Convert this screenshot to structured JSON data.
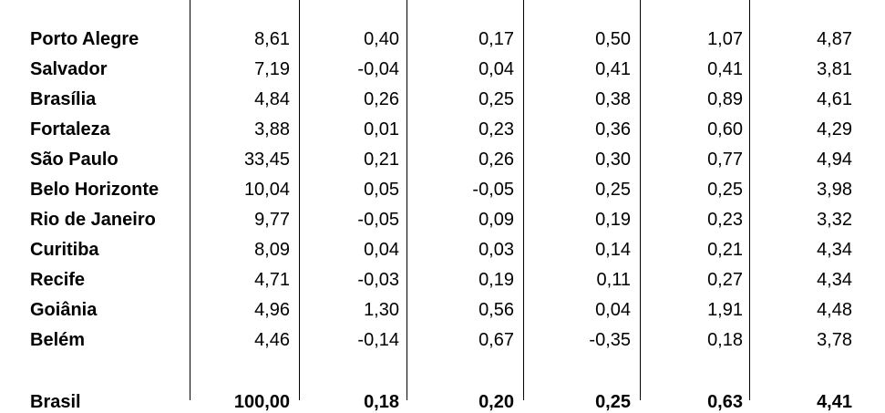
{
  "table": {
    "rows": [
      [
        "Porto Alegre",
        "8,61",
        "0,40",
        "0,17",
        "0,50",
        "1,07",
        "4,87"
      ],
      [
        "Salvador",
        "7,19",
        "-0,04",
        "0,04",
        "0,41",
        "0,41",
        "3,81"
      ],
      [
        "Brasília",
        "4,84",
        "0,26",
        "0,25",
        "0,38",
        "0,89",
        "4,61"
      ],
      [
        "Fortaleza",
        "3,88",
        "0,01",
        "0,23",
        "0,36",
        "0,60",
        "4,29"
      ],
      [
        "São Paulo",
        "33,45",
        "0,21",
        "0,26",
        "0,30",
        "0,77",
        "4,94"
      ],
      [
        "Belo Horizonte",
        "10,04",
        "0,05",
        "-0,05",
        "0,25",
        "0,25",
        "3,98"
      ],
      [
        "Rio de Janeiro",
        "9,77",
        "-0,05",
        "0,09",
        "0,19",
        "0,23",
        "3,32"
      ],
      [
        "Curitiba",
        "8,09",
        "0,04",
        "0,03",
        "0,14",
        "0,21",
        "4,34"
      ],
      [
        "Recife",
        "4,71",
        "-0,03",
        "0,19",
        "0,11",
        "0,27",
        "4,34"
      ],
      [
        "Goiânia",
        "4,96",
        "1,30",
        "0,56",
        "0,04",
        "1,91",
        "4,48"
      ],
      [
        "Belém",
        "4,46",
        "-0,14",
        "0,67",
        "-0,35",
        "0,18",
        "3,78"
      ]
    ],
    "total": [
      "Brasil",
      "100,00",
      "0,18",
      "0,20",
      "0,25",
      "0,63",
      "4,41"
    ]
  }
}
